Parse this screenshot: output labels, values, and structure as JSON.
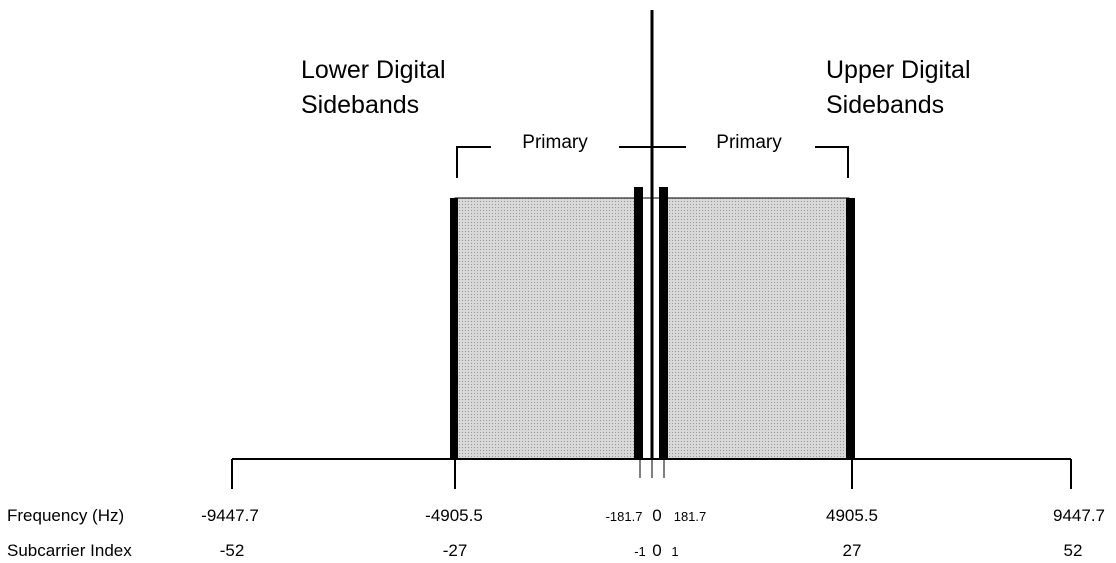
{
  "labels": {
    "lower_line1": "Lower Digital",
    "lower_line2": "Sidebands",
    "upper_line1": "Upper Digital",
    "upper_line2": "Sidebands",
    "primary_left": "Primary",
    "primary_right": "Primary"
  },
  "rows": {
    "frequency_label": "Frequency (Hz)",
    "subcarrier_label": "Subcarrier Index"
  },
  "ticks": [
    {
      "freq": "-9447.7",
      "index": "-52",
      "small": false
    },
    {
      "freq": "-4905.5",
      "index": "-27",
      "small": false
    },
    {
      "freq": "-181.7",
      "index": "-1",
      "small": true
    },
    {
      "freq": "0",
      "index": "0",
      "small": false
    },
    {
      "freq": "181.7",
      "index": "1",
      "small": true
    },
    {
      "freq": "4905.5",
      "index": "27",
      "small": false
    },
    {
      "freq": "9447.7",
      "index": "52",
      "small": false
    }
  ],
  "colors": {
    "sideband_fill": "#c9c9c9",
    "edge": "#000000"
  }
}
